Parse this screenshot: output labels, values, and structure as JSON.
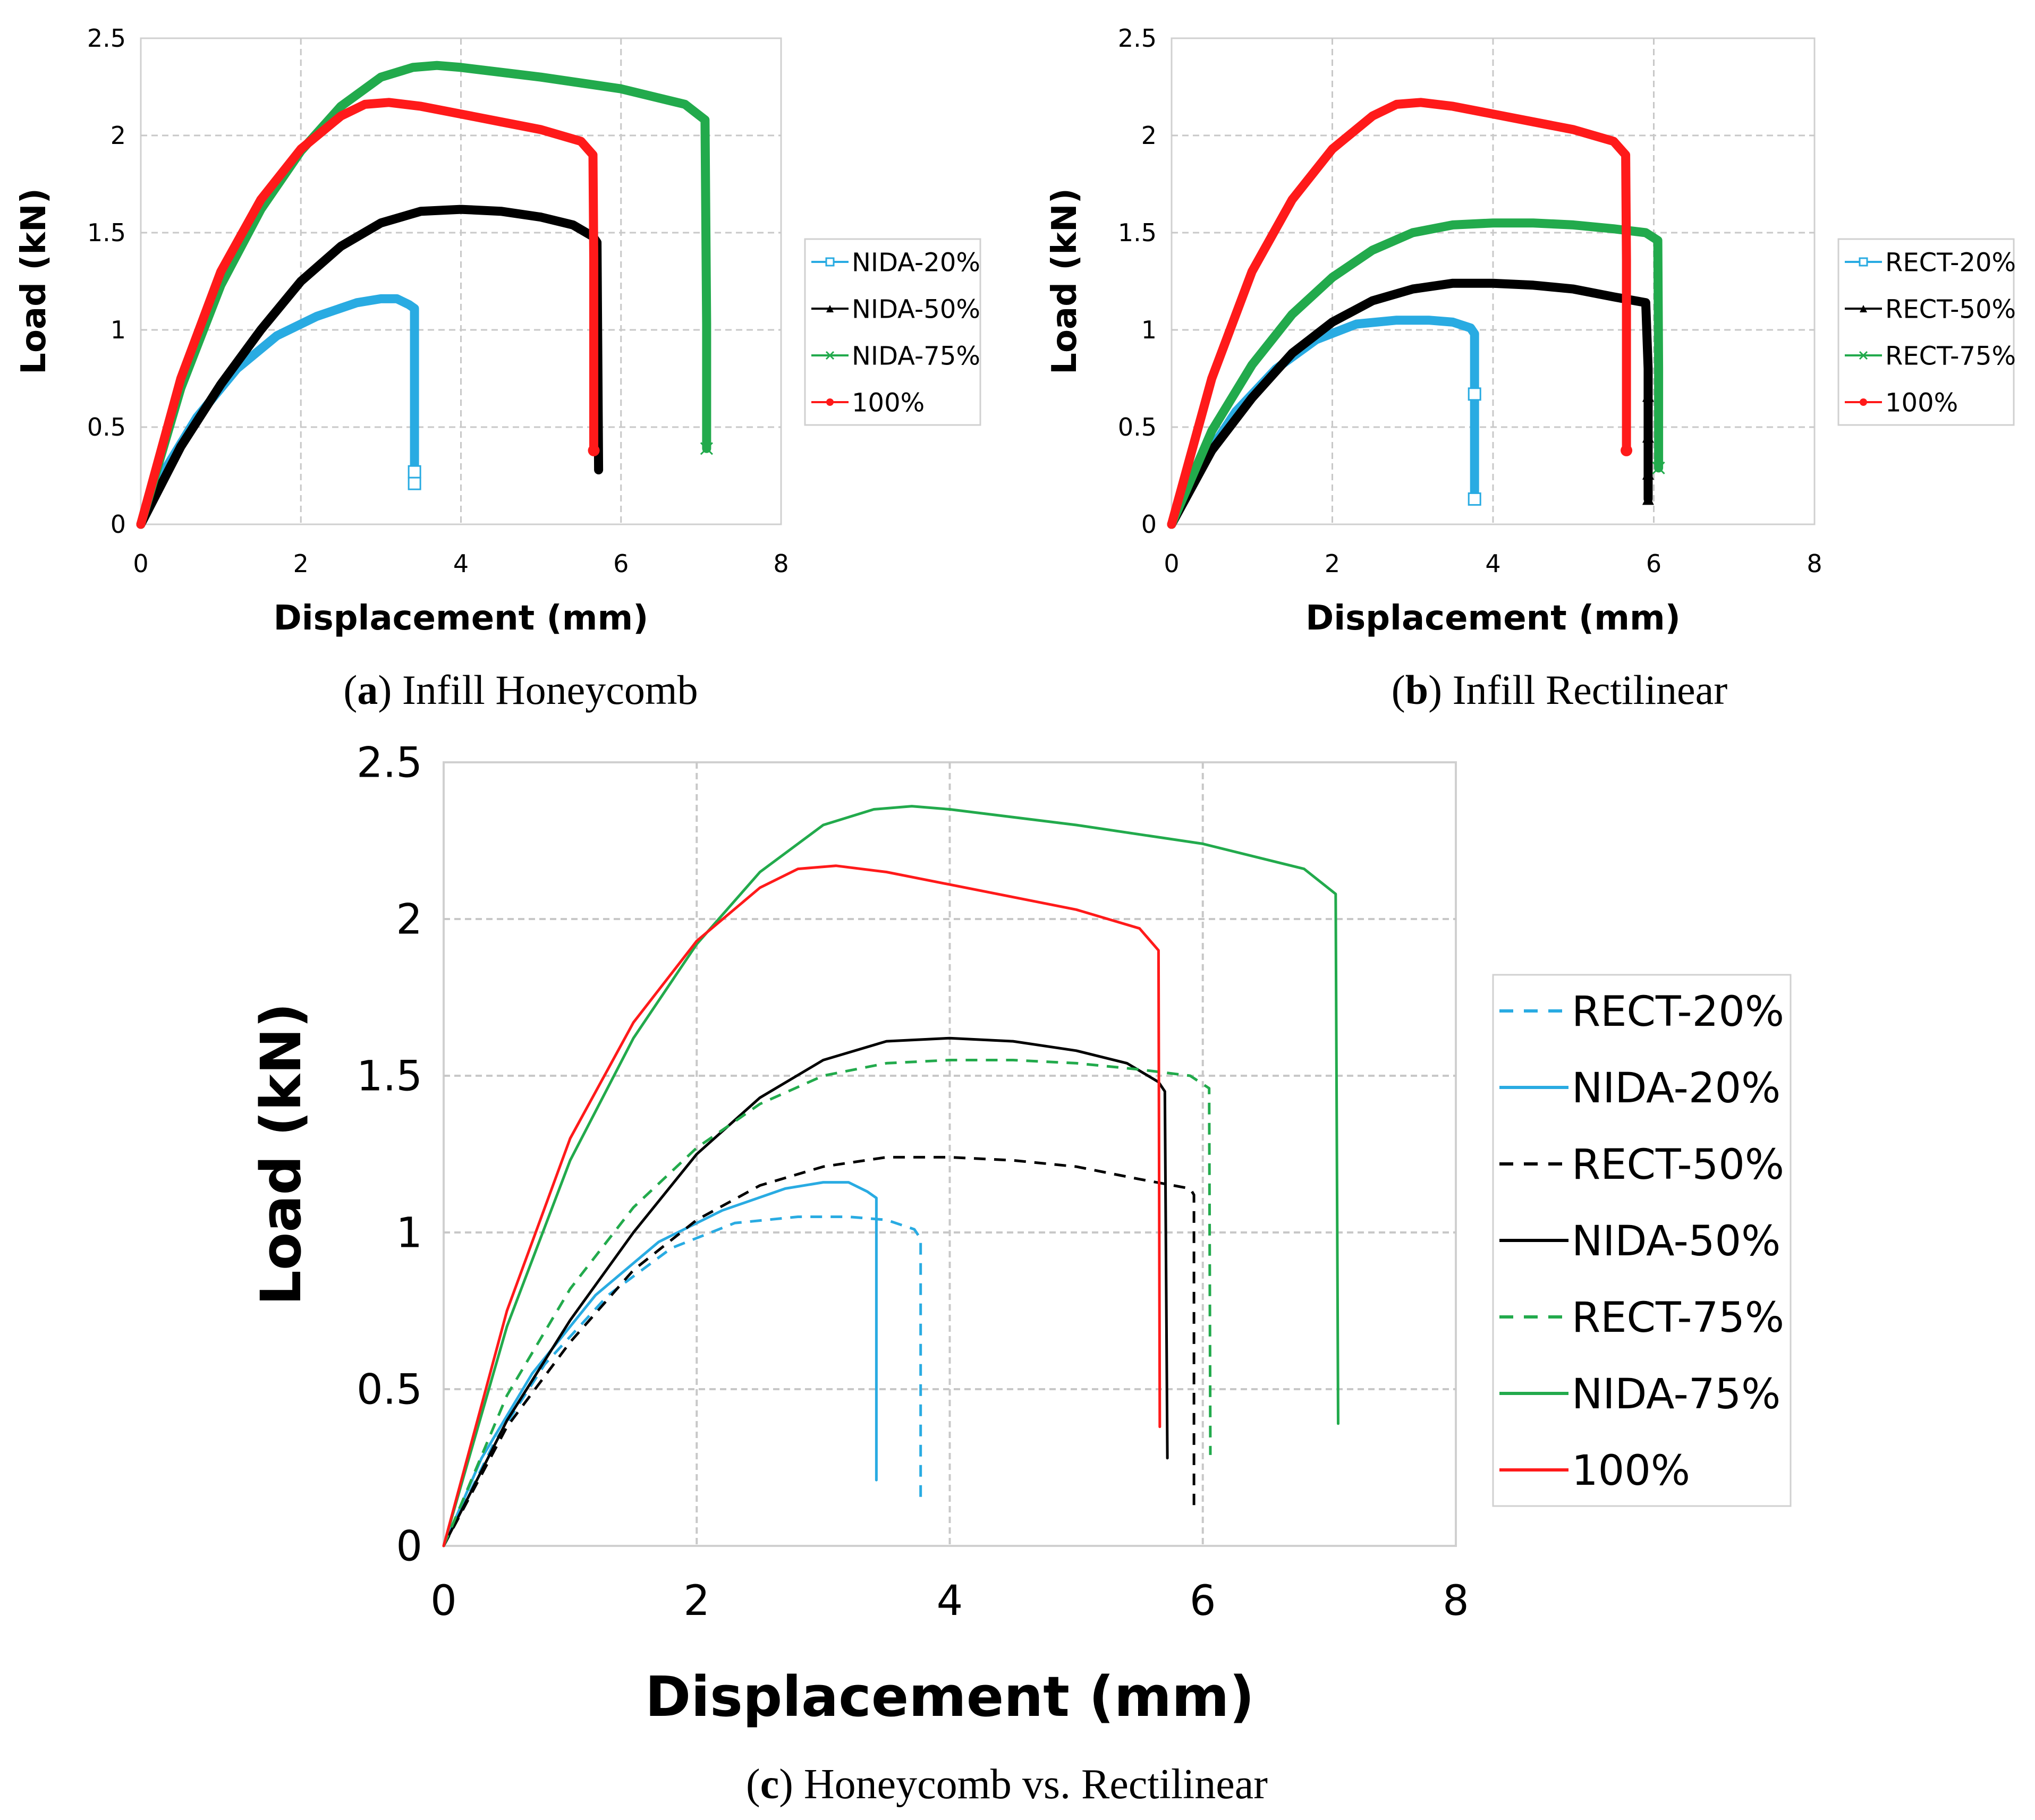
{
  "chart_data": [
    {
      "id": "a",
      "type": "line",
      "caption_letter": "a",
      "caption_text": ") Infill Honeycomb",
      "caption_open": "(",
      "xlabel": "Displacement (mm)",
      "ylabel": "Load (kN)",
      "xlim": [
        0,
        8
      ],
      "ylim": [
        0,
        2.5
      ],
      "xticks": [
        "0",
        "2",
        "4",
        "6",
        "8"
      ],
      "yticks": [
        "0",
        "0.5",
        "1",
        "1.5",
        "2",
        "2.5"
      ],
      "grid": true,
      "legend_position": "right",
      "series": [
        {
          "name": "NIDA-20%",
          "color": "#29ABE2",
          "marker": "square",
          "dash": false,
          "thick": true,
          "x": [
            0,
            0.3,
            0.7,
            1.2,
            1.7,
            2.2,
            2.7,
            3.0,
            3.2,
            3.35,
            3.42,
            3.42,
            3.42
          ],
          "y": [
            0,
            0.28,
            0.55,
            0.8,
            0.97,
            1.07,
            1.14,
            1.16,
            1.16,
            1.13,
            1.11,
            0.27,
            0.21
          ]
        },
        {
          "name": "NIDA-50%",
          "color": "#000000",
          "marker": "triangle",
          "dash": false,
          "thick": true,
          "x": [
            0,
            0.5,
            1.0,
            1.5,
            2.0,
            2.5,
            3.0,
            3.5,
            4.0,
            4.5,
            5.0,
            5.4,
            5.65,
            5.7,
            5.72
          ],
          "y": [
            0,
            0.4,
            0.72,
            1.0,
            1.25,
            1.43,
            1.55,
            1.61,
            1.62,
            1.61,
            1.58,
            1.54,
            1.48,
            1.45,
            0.28
          ]
        },
        {
          "name": "NIDA-75%",
          "color": "#22AA4C",
          "marker": "x",
          "dash": false,
          "thick": true,
          "x": [
            0,
            0.5,
            1.0,
            1.5,
            2.0,
            2.5,
            3.0,
            3.4,
            3.7,
            4.0,
            5.0,
            6.0,
            6.8,
            7.05,
            7.07,
            7.07
          ],
          "y": [
            0,
            0.7,
            1.23,
            1.62,
            1.92,
            2.15,
            2.3,
            2.35,
            2.36,
            2.35,
            2.3,
            2.24,
            2.16,
            2.08,
            1.03,
            0.39
          ]
        },
        {
          "name": "100%",
          "color": "#FF1A1A",
          "marker": "circle",
          "dash": false,
          "thick": true,
          "x": [
            0,
            0.5,
            1.0,
            1.5,
            2.0,
            2.5,
            2.8,
            3.1,
            3.5,
            4.0,
            4.5,
            5.0,
            5.5,
            5.65,
            5.66,
            5.66
          ],
          "y": [
            0,
            0.75,
            1.3,
            1.67,
            1.93,
            2.1,
            2.16,
            2.17,
            2.15,
            2.11,
            2.07,
            2.03,
            1.97,
            1.9,
            1.36,
            0.38
          ]
        }
      ]
    },
    {
      "id": "b",
      "type": "line",
      "caption_letter": "b",
      "caption_text": ") Infill Rectilinear",
      "caption_open": "(",
      "xlabel": "Displacement (mm)",
      "ylabel": "Load (kN)",
      "xlim": [
        0,
        8
      ],
      "ylim": [
        0,
        2.5
      ],
      "xticks": [
        "0",
        "2",
        "4",
        "6",
        "8"
      ],
      "yticks": [
        "0",
        "0.5",
        "1",
        "1.5",
        "2",
        "2.5"
      ],
      "grid": true,
      "legend_position": "right",
      "series": [
        {
          "name": "RECT-20%",
          "color": "#29ABE2",
          "marker": "square",
          "dash": false,
          "thick": true,
          "x": [
            0,
            0.4,
            0.8,
            1.3,
            1.8,
            2.3,
            2.8,
            3.2,
            3.5,
            3.72,
            3.77,
            3.77,
            3.77
          ],
          "y": [
            0,
            0.33,
            0.58,
            0.8,
            0.95,
            1.03,
            1.05,
            1.05,
            1.04,
            1.01,
            0.98,
            0.67,
            0.13
          ]
        },
        {
          "name": "RECT-50%",
          "color": "#000000",
          "marker": "triangle",
          "dash": false,
          "thick": true,
          "x": [
            0,
            0.5,
            1.0,
            1.5,
            2.0,
            2.5,
            3.0,
            3.5,
            4.0,
            4.5,
            5.0,
            5.5,
            5.9,
            5.93,
            5.93,
            5.93,
            5.93,
            5.93
          ],
          "y": [
            0,
            0.38,
            0.65,
            0.88,
            1.04,
            1.15,
            1.21,
            1.24,
            1.24,
            1.23,
            1.21,
            1.17,
            1.14,
            0.8,
            0.66,
            0.45,
            0.26,
            0.13
          ]
        },
        {
          "name": "RECT-75%",
          "color": "#22AA4C",
          "marker": "x",
          "dash": false,
          "thick": true,
          "x": [
            0,
            0.5,
            1.0,
            1.5,
            2.0,
            2.5,
            3.0,
            3.5,
            4.0,
            4.5,
            5.0,
            5.5,
            5.9,
            6.05,
            6.06,
            6.06
          ],
          "y": [
            0,
            0.48,
            0.82,
            1.08,
            1.27,
            1.41,
            1.5,
            1.54,
            1.55,
            1.55,
            1.54,
            1.52,
            1.5,
            1.46,
            0.8,
            0.29
          ]
        },
        {
          "name": "100%",
          "color": "#FF1A1A",
          "marker": "circle",
          "dash": false,
          "thick": true,
          "x": [
            0,
            0.5,
            1.0,
            1.5,
            2.0,
            2.5,
            2.8,
            3.1,
            3.5,
            4.0,
            4.5,
            5.0,
            5.5,
            5.65,
            5.66,
            5.66
          ],
          "y": [
            0,
            0.75,
            1.3,
            1.67,
            1.93,
            2.1,
            2.16,
            2.17,
            2.15,
            2.11,
            2.07,
            2.03,
            1.97,
            1.9,
            1.36,
            0.38
          ]
        }
      ]
    },
    {
      "id": "c",
      "type": "line",
      "caption_letter": "c",
      "caption_text": ") Honeycomb vs. Rectilinear",
      "caption_open": "(",
      "xlabel": "Displacement (mm)",
      "ylabel": "Load (kN)",
      "xlim": [
        0,
        8
      ],
      "ylim": [
        0,
        2.5
      ],
      "xticks": [
        "0",
        "2",
        "4",
        "6",
        "8"
      ],
      "yticks": [
        "0",
        "0.5",
        "1",
        "1.5",
        "2",
        "2.5"
      ],
      "grid": true,
      "legend_position": "right",
      "series": [
        {
          "name": "RECT-20%",
          "color": "#29ABE2",
          "marker": "none",
          "dash": true,
          "thick": false,
          "x": [
            0,
            0.4,
            0.8,
            1.3,
            1.8,
            2.3,
            2.8,
            3.2,
            3.5,
            3.72,
            3.77,
            3.77
          ],
          "y": [
            0,
            0.33,
            0.58,
            0.8,
            0.95,
            1.03,
            1.05,
            1.05,
            1.04,
            1.01,
            0.98,
            0.13
          ]
        },
        {
          "name": "NIDA-20%",
          "color": "#29ABE2",
          "marker": "none",
          "dash": false,
          "thick": false,
          "x": [
            0,
            0.3,
            0.7,
            1.2,
            1.7,
            2.2,
            2.7,
            3.0,
            3.2,
            3.35,
            3.42,
            3.42
          ],
          "y": [
            0,
            0.28,
            0.55,
            0.8,
            0.97,
            1.07,
            1.14,
            1.16,
            1.16,
            1.13,
            1.11,
            0.21
          ]
        },
        {
          "name": "RECT-50%",
          "color": "#000000",
          "marker": "none",
          "dash": true,
          "thick": false,
          "x": [
            0,
            0.5,
            1.0,
            1.5,
            2.0,
            2.5,
            3.0,
            3.5,
            4.0,
            4.5,
            5.0,
            5.5,
            5.9,
            5.93,
            5.93
          ],
          "y": [
            0,
            0.38,
            0.65,
            0.88,
            1.04,
            1.15,
            1.21,
            1.24,
            1.24,
            1.23,
            1.21,
            1.17,
            1.14,
            1.12,
            0.13
          ]
        },
        {
          "name": "NIDA-50%",
          "color": "#000000",
          "marker": "none",
          "dash": false,
          "thick": false,
          "x": [
            0,
            0.5,
            1.0,
            1.5,
            2.0,
            2.5,
            3.0,
            3.5,
            4.0,
            4.5,
            5.0,
            5.4,
            5.65,
            5.7,
            5.72
          ],
          "y": [
            0,
            0.4,
            0.72,
            1.0,
            1.25,
            1.43,
            1.55,
            1.61,
            1.62,
            1.61,
            1.58,
            1.54,
            1.48,
            1.45,
            0.28
          ]
        },
        {
          "name": "RECT-75%",
          "color": "#22AA4C",
          "marker": "none",
          "dash": true,
          "thick": false,
          "x": [
            0,
            0.5,
            1.0,
            1.5,
            2.0,
            2.5,
            3.0,
            3.5,
            4.0,
            4.5,
            5.0,
            5.5,
            5.9,
            6.05,
            6.06
          ],
          "y": [
            0,
            0.48,
            0.82,
            1.08,
            1.27,
            1.41,
            1.5,
            1.54,
            1.55,
            1.55,
            1.54,
            1.52,
            1.5,
            1.46,
            0.29
          ]
        },
        {
          "name": "NIDA-75%",
          "color": "#22AA4C",
          "marker": "none",
          "dash": false,
          "thick": false,
          "x": [
            0,
            0.5,
            1.0,
            1.5,
            2.0,
            2.5,
            3.0,
            3.4,
            3.7,
            4.0,
            5.0,
            6.0,
            6.8,
            7.05,
            7.07
          ],
          "y": [
            0,
            0.7,
            1.23,
            1.62,
            1.92,
            2.15,
            2.3,
            2.35,
            2.36,
            2.35,
            2.3,
            2.24,
            2.16,
            2.08,
            0.39
          ]
        },
        {
          "name": "100%",
          "color": "#FF1A1A",
          "marker": "none",
          "dash": false,
          "thick": false,
          "x": [
            0,
            0.5,
            1.0,
            1.5,
            2.0,
            2.5,
            2.8,
            3.1,
            3.5,
            4.0,
            4.5,
            5.0,
            5.5,
            5.65,
            5.66
          ],
          "y": [
            0,
            0.75,
            1.3,
            1.67,
            1.93,
            2.1,
            2.16,
            2.17,
            2.15,
            2.11,
            2.07,
            2.03,
            1.97,
            1.9,
            0.38
          ]
        }
      ]
    }
  ]
}
